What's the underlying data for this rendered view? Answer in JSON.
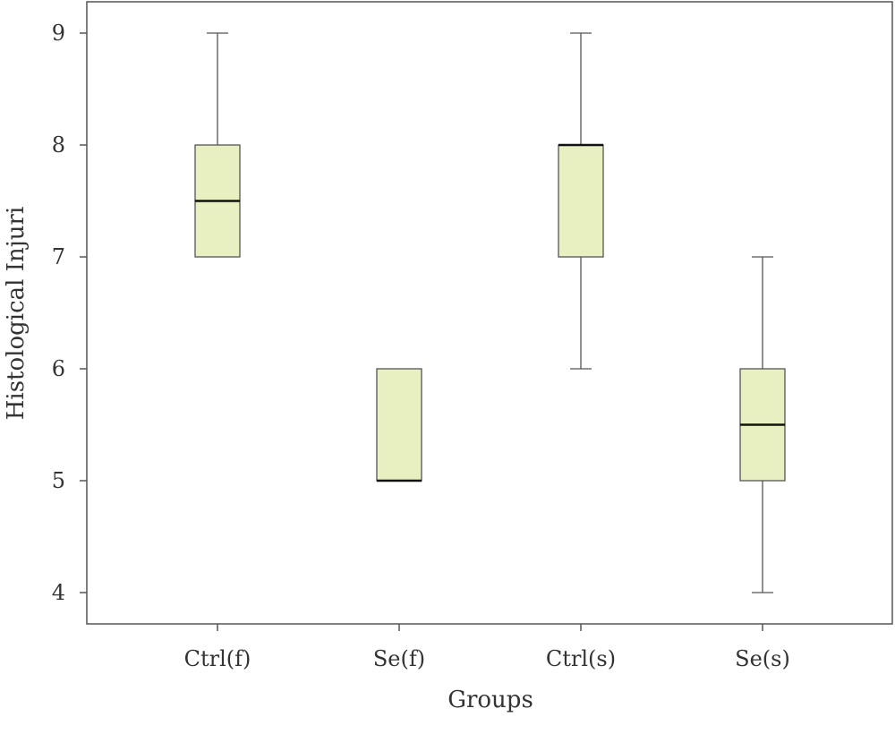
{
  "chart_data": {
    "type": "boxplot",
    "xlabel": "Groups",
    "ylabel": "Histological Injuri",
    "ylim": [
      3.72,
      9.28
    ],
    "yticks": [
      4,
      5,
      6,
      7,
      8,
      9
    ],
    "categories": [
      "Ctrl(f)",
      "Se(f)",
      "Ctrl(s)",
      "Se(s)"
    ],
    "boxes": [
      {
        "category": "Ctrl(f)",
        "whisker_low": 7,
        "q1": 7,
        "median": 7.5,
        "q3": 8,
        "whisker_high": 9
      },
      {
        "category": "Se(f)",
        "whisker_low": 5,
        "q1": 5,
        "median": 5,
        "q3": 6,
        "whisker_high": 6
      },
      {
        "category": "Ctrl(s)",
        "whisker_low": 6,
        "q1": 7,
        "median": 8,
        "q3": 8,
        "whisker_high": 9
      },
      {
        "category": "Se(s)",
        "whisker_low": 4,
        "q1": 5,
        "median": 5.5,
        "q3": 6,
        "whisker_high": 7
      }
    ],
    "box_fill": "#e8efc0",
    "box_stroke": "#555555",
    "grid": false,
    "legend": "none"
  }
}
